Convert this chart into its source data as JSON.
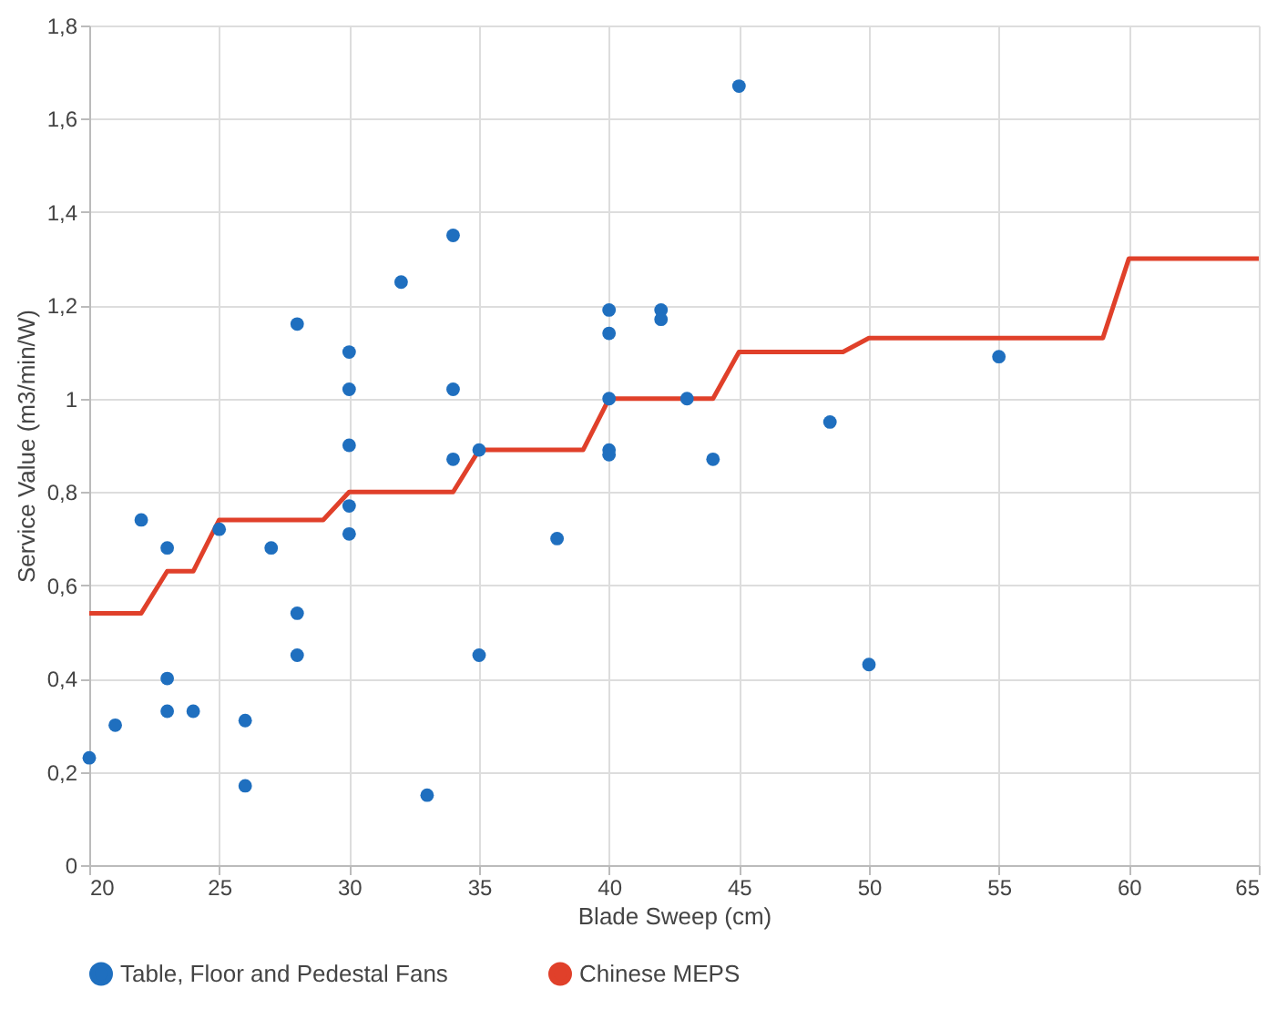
{
  "chart_data": {
    "type": "scatter",
    "xlabel": "Blade Sweep (cm)",
    "ylabel": "Service Value (m3/min/W)",
    "xlim": [
      20,
      65
    ],
    "xticks": [
      20,
      25,
      30,
      35,
      40,
      45,
      50,
      55,
      60,
      65
    ],
    "ylim": [
      0,
      1.8
    ],
    "yticks": [
      0,
      {
        "value": 0.2,
        "label": "0,2"
      },
      {
        "value": 0.4,
        "label": "0,4"
      },
      {
        "value": 0.6,
        "label": "0,6"
      },
      {
        "value": 0.8,
        "label": "0,8"
      },
      1,
      {
        "value": 1.2,
        "label": "1,2"
      },
      {
        "value": 1.4,
        "label": "1,4"
      },
      {
        "value": 1.6,
        "label": "1,6"
      },
      {
        "value": 1.8,
        "label": "1,8"
      }
    ],
    "grid": true,
    "legend": "bottom",
    "series": [
      {
        "name": "Table, Floor and Pedestal Fans",
        "color": "#1f6fbf",
        "marker": "circle",
        "x": [
          20,
          21,
          22,
          23,
          23,
          23,
          24,
          25,
          26,
          26,
          27,
          28,
          28,
          28,
          30,
          30,
          30,
          30,
          30,
          32,
          33,
          34,
          34,
          34,
          35,
          35,
          38,
          40,
          40,
          40,
          40,
          40,
          42,
          42,
          43,
          44,
          45,
          48.5,
          50,
          55
        ],
        "values": [
          0.23,
          0.3,
          0.74,
          0.68,
          0.4,
          0.33,
          0.33,
          0.72,
          0.31,
          0.17,
          0.68,
          1.16,
          0.54,
          0.45,
          1.1,
          1.02,
          0.9,
          0.77,
          0.71,
          1.25,
          0.15,
          1.35,
          1.02,
          0.87,
          0.89,
          0.45,
          0.7,
          1.19,
          1.14,
          1.0,
          0.89,
          0.88,
          1.19,
          1.17,
          1.0,
          0.87,
          1.67,
          0.95,
          0.43,
          1.09
        ]
      },
      {
        "name": "Chinese MEPS",
        "type": "line",
        "color": "#e0402a",
        "marker": "none",
        "line_style": "solid",
        "x": [
          20,
          22,
          23,
          24,
          25,
          29,
          30,
          34,
          35,
          39,
          40,
          44,
          45,
          49,
          50,
          59,
          60,
          65
        ],
        "values": [
          0.54,
          0.54,
          0.63,
          0.63,
          0.74,
          0.74,
          0.8,
          0.8,
          0.89,
          0.89,
          1.0,
          1.0,
          1.1,
          1.1,
          1.13,
          1.13,
          1.3,
          1.3
        ]
      }
    ]
  }
}
